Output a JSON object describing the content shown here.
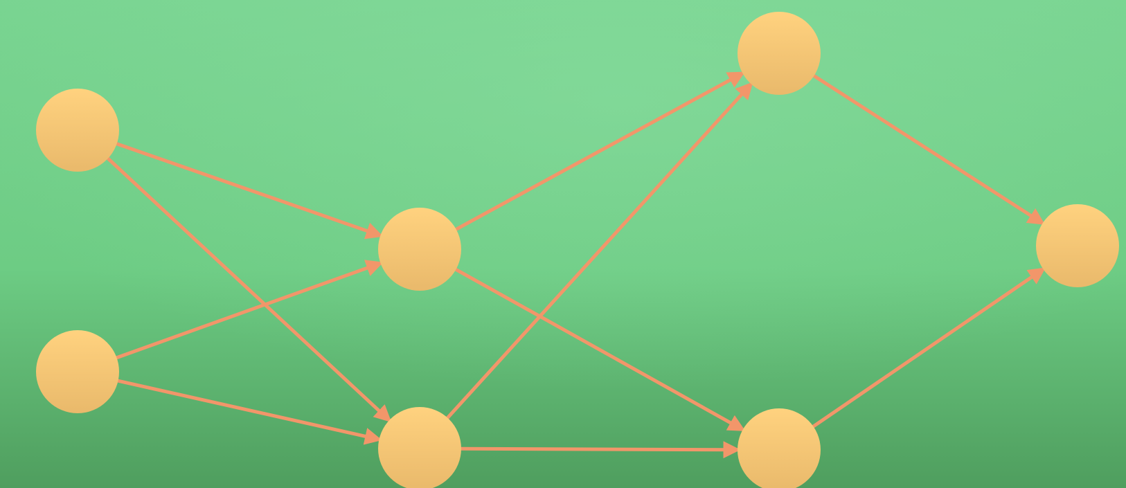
{
  "diagram": {
    "type": "directed-graph",
    "colors": {
      "background_top": "#79d491",
      "background_mid": "#6dcc84",
      "background_bottom": "#4f9e5e",
      "node_top": "#ffd27f",
      "node_bottom": "#e9b96b",
      "edge": "#f2966a"
    },
    "nodes": [
      {
        "id": "n1"
      },
      {
        "id": "n2"
      },
      {
        "id": "n3"
      },
      {
        "id": "n4"
      },
      {
        "id": "n5"
      },
      {
        "id": "n6"
      },
      {
        "id": "n7"
      }
    ],
    "edges": [
      {
        "from": "n1",
        "to": "n3"
      },
      {
        "from": "n1",
        "to": "n4"
      },
      {
        "from": "n2",
        "to": "n3"
      },
      {
        "from": "n2",
        "to": "n4"
      },
      {
        "from": "n3",
        "to": "n5"
      },
      {
        "from": "n3",
        "to": "n6"
      },
      {
        "from": "n4",
        "to": "n5"
      },
      {
        "from": "n4",
        "to": "n6"
      },
      {
        "from": "n5",
        "to": "n7"
      },
      {
        "from": "n6",
        "to": "n7"
      }
    ]
  }
}
